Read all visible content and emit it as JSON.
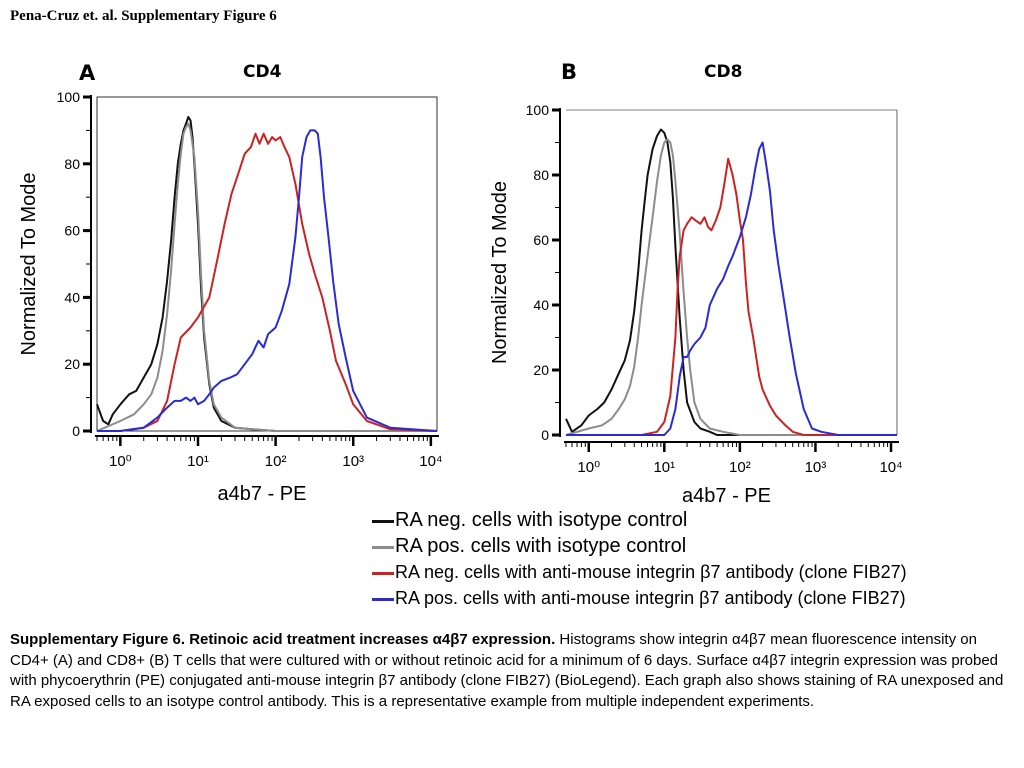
{
  "header": "Pena-Cruz et. al. Supplementary Figure 6",
  "panels": [
    {
      "letter": "A",
      "title": "CD4"
    },
    {
      "letter": "B",
      "title": "CD8"
    }
  ],
  "legend": [
    {
      "label": "RA neg. cells with isotype control",
      "color": "#111111"
    },
    {
      "label": "RA pos. cells with isotype control",
      "color": "#8c8c8c"
    },
    {
      "label": "RA neg. cells with anti-mouse integrin β7 antibody (clone FIB27)",
      "color": "#cc2222"
    },
    {
      "label": "RA pos. cells with anti-mouse integrin β7 antibody (clone FIB27)",
      "color": "#2a2ad6"
    }
  ],
  "caption": {
    "title": "Supplementary Figure 6.  Retinoic acid treatment increases α4β7 expression.",
    "body": "  Histograms show integrin α4β7 mean fluorescence intensity on CD4+ (A) and CD8+ (B) T cells that were cultured with or without retinoic acid for a minimum of 6 days. Surface α4β7 integrin expression was probed with phycoerythrin (PE) conjugated anti-mouse integrin β7 antibody (clone FIB27) (BioLegend).  Each graph also shows staining of RA unexposed and RA exposed cells to an isotype control antibody. This is a representative example from multiple independent experiments."
  },
  "chart_data": [
    {
      "type": "line",
      "title": "CD4",
      "xlabel": "a4b7 - PE",
      "ylabel": "Normalized To Mode",
      "xscale": "log",
      "xlim": [
        0.5,
        12000
      ],
      "ylim": [
        0,
        100
      ],
      "yticks": [
        0,
        20,
        40,
        60,
        80,
        100
      ],
      "xticks": [
        1,
        10,
        100,
        1000,
        10000
      ],
      "xtick_labels": [
        "10⁰",
        "10¹",
        "10²",
        "10³",
        "10⁴"
      ],
      "series": [
        {
          "name": "RA neg. cells with isotype control",
          "color": "#111111",
          "x": [
            0.5,
            0.6,
            0.7,
            0.8,
            1,
            1.3,
            1.6,
            2,
            2.5,
            3,
            3.5,
            4,
            4.5,
            5,
            5.5,
            6,
            6.5,
            7,
            7.5,
            8,
            8.5,
            9,
            10,
            11,
            12,
            14,
            16,
            20,
            30,
            50,
            100,
            500,
            12000
          ],
          "y": [
            8,
            3,
            2,
            5,
            8,
            11,
            12,
            16,
            20,
            26,
            34,
            45,
            57,
            70,
            80,
            86,
            90,
            92,
            94,
            93,
            88,
            80,
            62,
            42,
            28,
            14,
            7,
            3,
            1,
            0.5,
            0,
            0,
            0
          ]
        },
        {
          "name": "RA pos. cells with isotype control",
          "color": "#8c8c8c",
          "x": [
            0.5,
            1,
            1.5,
            2,
            2.5,
            3,
            3.5,
            4,
            4.5,
            5,
            5.5,
            6,
            6.5,
            7,
            7.5,
            8,
            9,
            10,
            11,
            12,
            14,
            16,
            20,
            30,
            50,
            100,
            500,
            12000
          ],
          "y": [
            0,
            3,
            5,
            8,
            11,
            16,
            24,
            35,
            48,
            62,
            74,
            83,
            89,
            91,
            92,
            90,
            82,
            66,
            46,
            30,
            15,
            8,
            4,
            1,
            0.5,
            0,
            0,
            0
          ]
        },
        {
          "name": "RA neg. cells with anti-mouse integrin β7 antibody (clone FIB27)",
          "color": "#cc2222",
          "x": [
            0.5,
            1,
            2,
            3,
            4,
            5,
            6,
            8,
            10,
            14,
            18,
            22,
            27,
            33,
            40,
            48,
            55,
            62,
            70,
            80,
            90,
            100,
            115,
            130,
            150,
            180,
            220,
            270,
            320,
            400,
            500,
            600,
            800,
            1000,
            1500,
            3000,
            12000
          ],
          "y": [
            0,
            0,
            1,
            3,
            9,
            20,
            28,
            31,
            34,
            40,
            52,
            62,
            71,
            77,
            83,
            85,
            89,
            86,
            89,
            86,
            88,
            87,
            88,
            85,
            82,
            74,
            62,
            53,
            47,
            40,
            30,
            21,
            14,
            8,
            3,
            0.5,
            0
          ]
        },
        {
          "name": "RA pos. cells with anti-mouse integrin β7 antibody (clone FIB27)",
          "color": "#2a2ad6",
          "x": [
            0.5,
            1,
            2,
            3,
            4,
            5,
            6,
            7,
            8,
            9,
            10,
            12,
            14,
            16,
            20,
            26,
            32,
            40,
            50,
            60,
            70,
            80,
            100,
            120,
            150,
            180,
            200,
            220,
            250,
            280,
            320,
            350,
            380,
            420,
            480,
            550,
            650,
            800,
            1000,
            1500,
            3000,
            12000
          ],
          "y": [
            0,
            0,
            1,
            4,
            7,
            9,
            9,
            10,
            9,
            10,
            8,
            9,
            11,
            13,
            15,
            16,
            17,
            20,
            23,
            27,
            25,
            29,
            31,
            36,
            44,
            58,
            70,
            82,
            88,
            90,
            90,
            89,
            82,
            70,
            58,
            45,
            32,
            22,
            12,
            4,
            1,
            0
          ]
        }
      ]
    },
    {
      "type": "line",
      "title": "CD8",
      "xlabel": "a4b7 - PE",
      "ylabel": "Normalized To Mode",
      "xscale": "log",
      "xlim": [
        0.5,
        12000
      ],
      "ylim": [
        0,
        100
      ],
      "yticks": [
        0,
        20,
        40,
        60,
        80,
        100
      ],
      "xticks": [
        1,
        10,
        100,
        1000,
        10000
      ],
      "xtick_labels": [
        "10⁰",
        "10¹",
        "10²",
        "10³",
        "10⁴"
      ],
      "series": [
        {
          "name": "RA neg. cells with isotype control",
          "color": "#111111",
          "x": [
            0.5,
            0.6,
            0.8,
            1,
            1.3,
            1.6,
            2,
            2.5,
            3,
            3.5,
            4,
            4.5,
            5,
            5.5,
            6,
            7,
            8,
            9,
            10,
            11,
            12,
            13,
            14,
            16,
            18,
            20,
            25,
            30,
            40,
            50,
            100,
            12000
          ],
          "y": [
            5,
            1,
            3,
            6,
            8,
            10,
            14,
            19,
            23,
            29,
            38,
            50,
            63,
            72,
            80,
            88,
            92,
            94,
            93,
            90,
            84,
            73,
            58,
            36,
            20,
            10,
            4,
            2,
            1,
            0,
            0,
            0
          ]
        },
        {
          "name": "RA pos. cells with isotype control",
          "color": "#8c8c8c",
          "x": [
            0.5,
            1,
            1.5,
            2,
            2.5,
            3,
            3.5,
            4,
            4.5,
            5,
            6,
            7,
            8,
            9,
            10,
            11,
            12,
            13,
            14,
            16,
            18,
            20,
            22,
            25,
            30,
            40,
            60,
            100,
            12000
          ],
          "y": [
            0,
            2,
            3,
            5,
            8,
            11,
            15,
            21,
            30,
            40,
            55,
            67,
            78,
            86,
            90,
            91,
            90,
            86,
            78,
            62,
            44,
            30,
            20,
            10,
            5,
            2,
            1,
            0,
            0
          ]
        },
        {
          "name": "RA neg. cells with anti-mouse integrin β7 antibody (clone FIB27)",
          "color": "#cc2222",
          "x": [
            0.5,
            5,
            8,
            10,
            12,
            14,
            15,
            16,
            18,
            20,
            23,
            26,
            30,
            34,
            38,
            42,
            48,
            55,
            62,
            70,
            80,
            90,
            100,
            110,
            120,
            130,
            150,
            180,
            200,
            250,
            300,
            400,
            500,
            700,
            1000,
            12000
          ],
          "y": [
            0,
            0,
            1,
            4,
            12,
            30,
            45,
            55,
            63,
            65,
            67,
            66,
            65,
            67,
            64,
            63,
            66,
            70,
            77,
            85,
            80,
            74,
            66,
            60,
            47,
            38,
            30,
            18,
            14,
            9,
            6,
            3,
            1,
            0,
            0,
            0
          ]
        },
        {
          "name": "RA pos. cells with anti-mouse integrin β7 antibody (clone FIB27)",
          "color": "#2a2ad6",
          "x": [
            0.5,
            5,
            10,
            12,
            14,
            16,
            18,
            20,
            22,
            25,
            30,
            35,
            40,
            50,
            60,
            70,
            80,
            100,
            120,
            140,
            160,
            180,
            200,
            220,
            250,
            280,
            320,
            380,
            450,
            550,
            700,
            900,
            1200,
            2000,
            12000
          ],
          "y": [
            0,
            0,
            0,
            2,
            8,
            18,
            24,
            24,
            26,
            28,
            30,
            33,
            40,
            45,
            48,
            52,
            55,
            61,
            67,
            74,
            82,
            88,
            90,
            84,
            75,
            63,
            53,
            42,
            31,
            19,
            8,
            2,
            1,
            0,
            0
          ]
        }
      ]
    }
  ]
}
